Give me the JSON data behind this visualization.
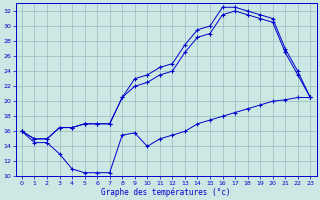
{
  "xlabel": "Graphe des températures (°c)",
  "bg_color": "#cce8e4",
  "grid_color": "#99bbbb",
  "line_color": "#0000cc",
  "xlim": [
    -0.5,
    23.5
  ],
  "ylim": [
    10,
    33
  ],
  "yticks": [
    10,
    12,
    14,
    16,
    18,
    20,
    22,
    24,
    26,
    28,
    30,
    32
  ],
  "xticks": [
    0,
    1,
    2,
    3,
    4,
    5,
    6,
    7,
    8,
    9,
    10,
    11,
    12,
    13,
    14,
    15,
    16,
    17,
    18,
    19,
    20,
    21,
    22,
    23
  ],
  "line1_x": [
    0,
    1,
    2,
    3,
    4,
    5,
    6,
    7,
    8,
    9,
    10,
    11,
    12,
    13,
    14,
    15,
    16,
    17,
    18,
    19,
    20,
    21,
    22,
    23
  ],
  "line1_y": [
    16,
    15,
    15,
    16.5,
    16.5,
    17,
    17,
    17,
    20.5,
    23,
    23.5,
    24.5,
    25,
    27.5,
    29.5,
    30,
    32.5,
    32.5,
    32,
    31.5,
    31,
    27,
    24,
    20.5
  ],
  "line2_x": [
    0,
    1,
    2,
    3,
    4,
    5,
    6,
    7,
    8,
    9,
    10,
    11,
    12,
    13,
    14,
    15,
    16,
    17,
    18,
    19,
    20,
    21,
    22,
    23
  ],
  "line2_y": [
    16,
    15,
    15,
    16.5,
    16.5,
    17,
    17,
    17,
    20.5,
    22,
    22.5,
    23.5,
    24,
    26.5,
    28.5,
    29,
    31.5,
    32,
    31.5,
    31,
    30.5,
    26.5,
    23.5,
    20.5
  ],
  "line3_x": [
    0,
    1,
    2,
    3,
    4,
    5,
    6,
    7,
    8,
    9,
    10,
    11,
    12,
    13,
    14,
    15,
    16,
    17,
    18,
    19,
    20,
    21,
    22,
    23
  ],
  "line3_y": [
    16,
    14.5,
    14.5,
    13,
    11,
    10.5,
    10.5,
    10.5,
    15.5,
    15.8,
    14,
    15,
    15.5,
    16,
    17,
    17.5,
    18,
    18.5,
    19,
    19.5,
    20,
    20.2,
    20.5,
    20.5
  ]
}
